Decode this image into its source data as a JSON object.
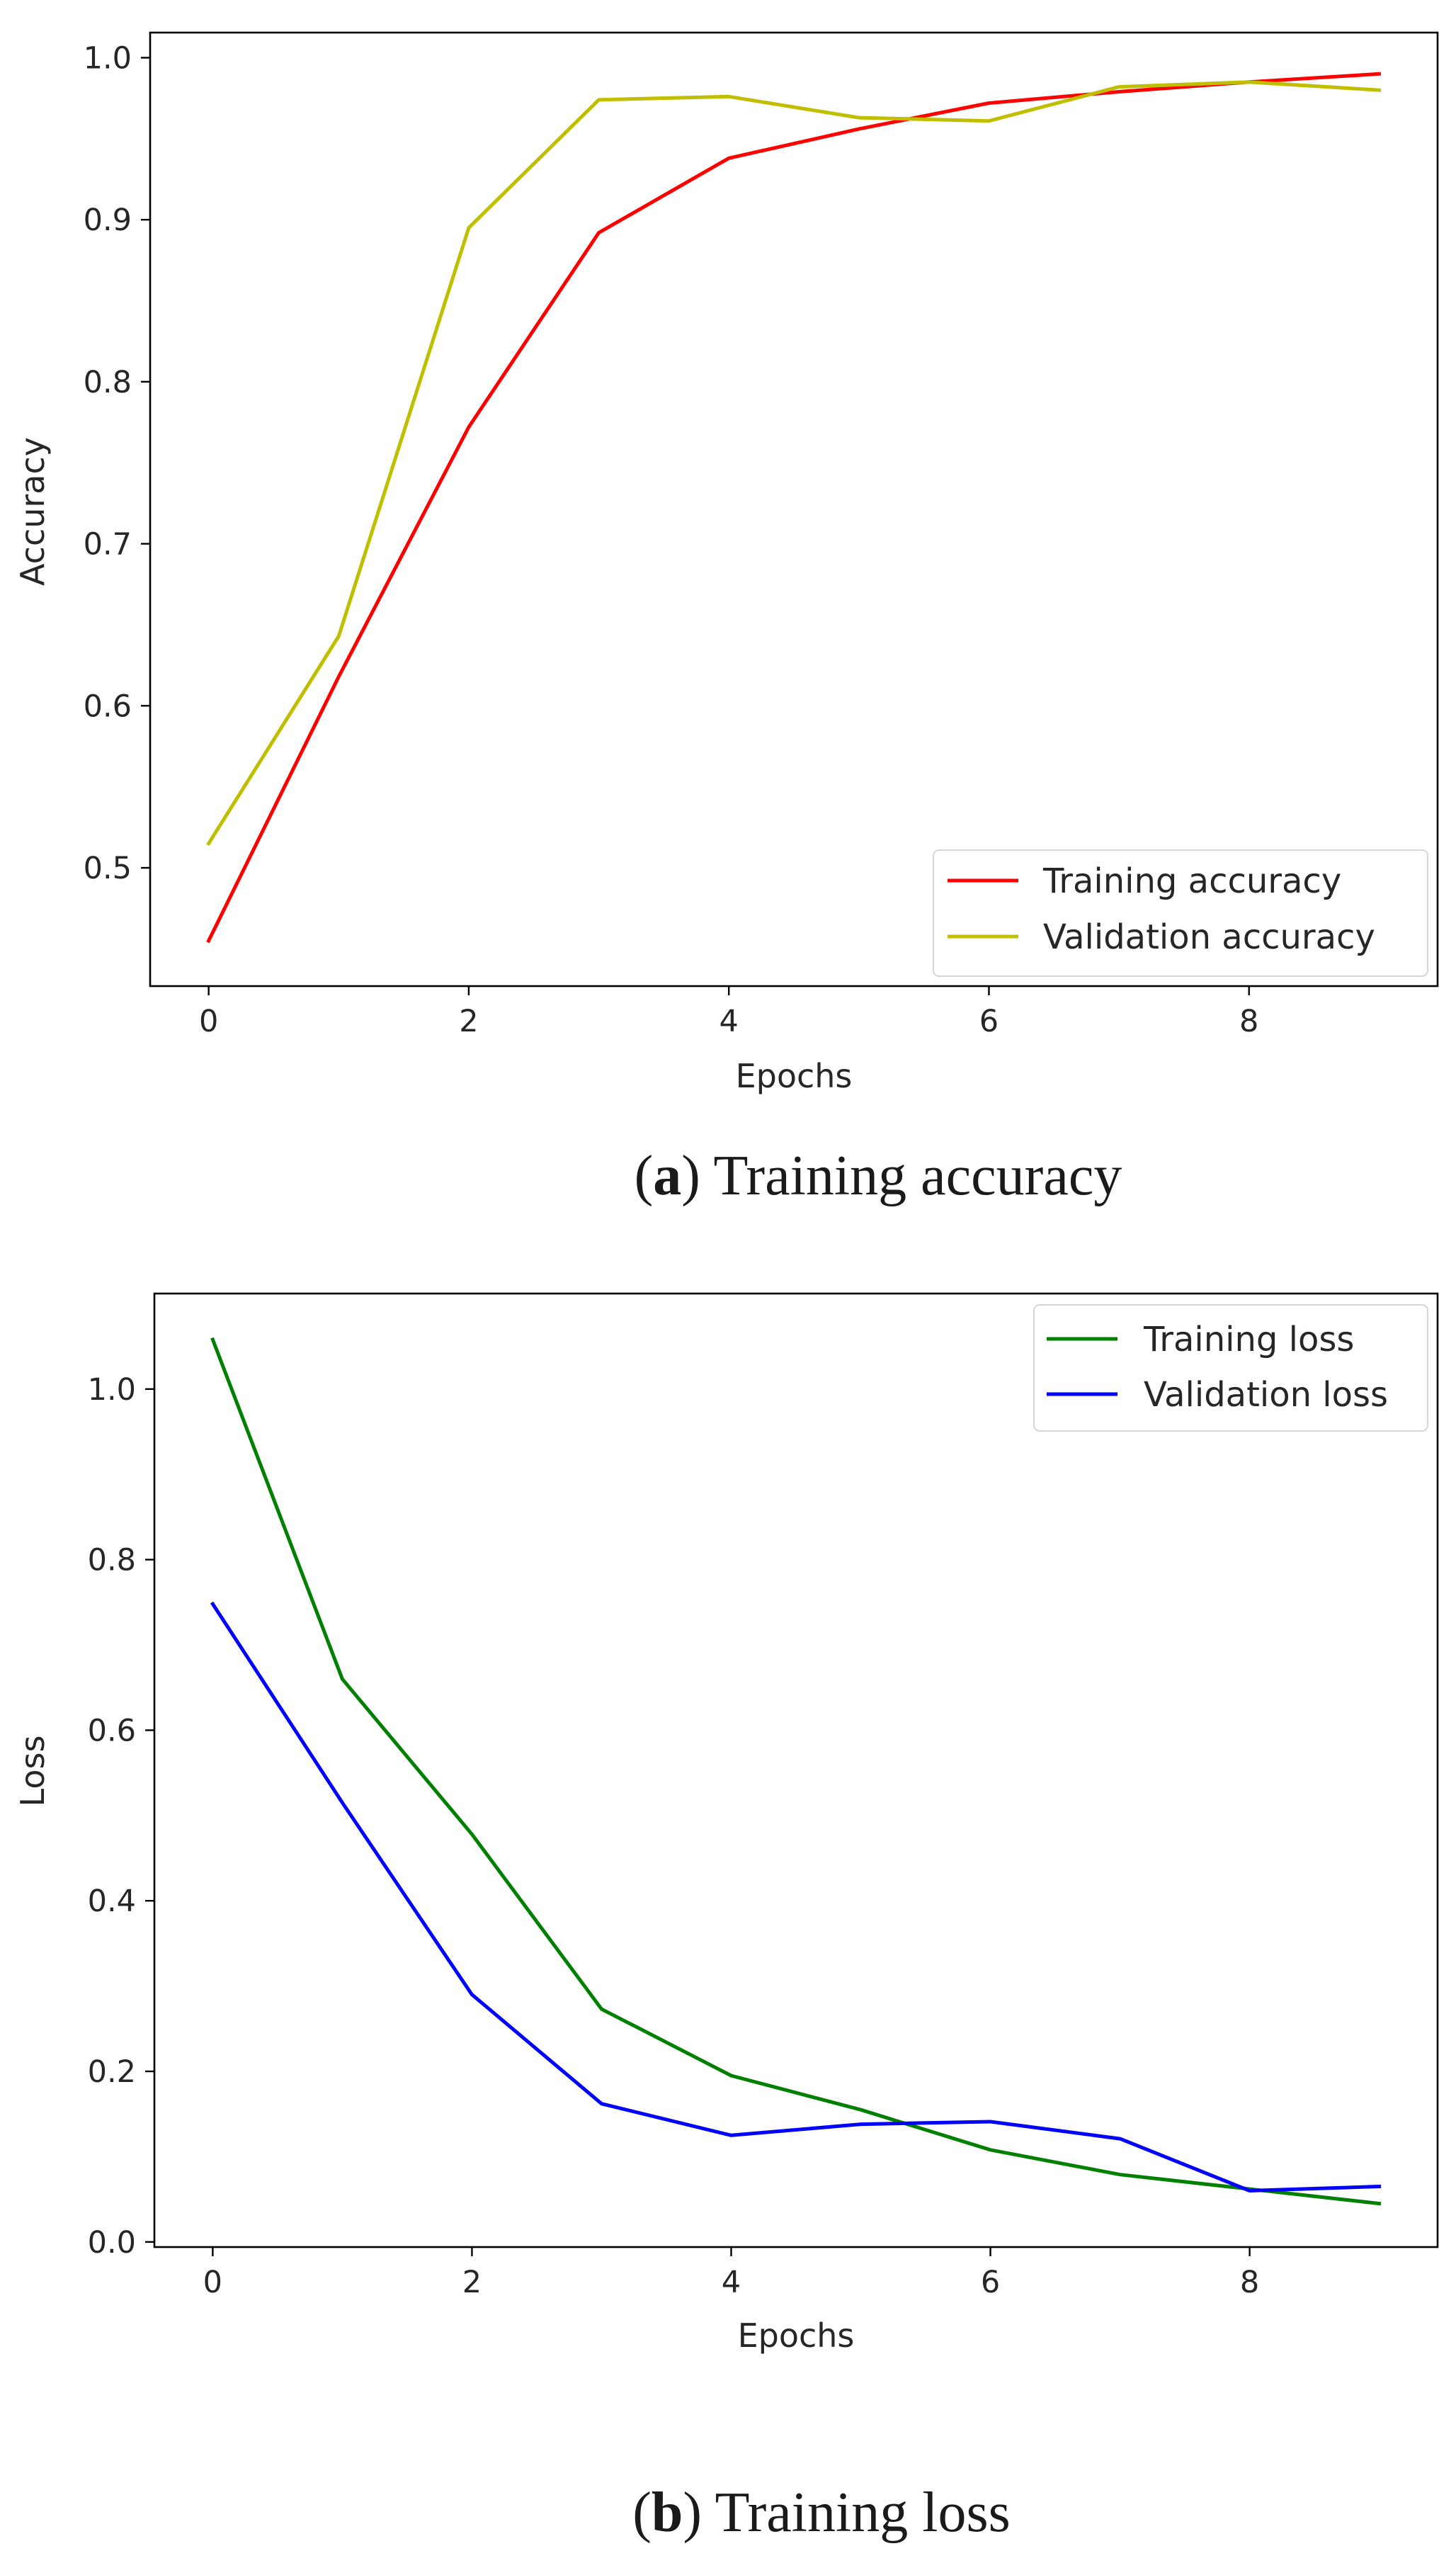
{
  "chart_data": [
    {
      "id": "accuracy",
      "type": "line",
      "title": "",
      "xlabel": "Epochs",
      "ylabel": "Accuracy",
      "xlim": [
        -0.45,
        9.45
      ],
      "ylim": [
        0.427,
        1.0155
      ],
      "xticks": [
        0,
        2,
        4,
        6,
        8
      ],
      "xtick_labels": [
        "0",
        "2",
        "4",
        "6",
        "8"
      ],
      "yticks": [
        0.5,
        0.6,
        0.7,
        0.8,
        0.9,
        1.0
      ],
      "ytick_labels": [
        "0.5",
        "0.6",
        "0.7",
        "0.8",
        "0.9",
        "1.0"
      ],
      "grid": false,
      "legend_position": "lower-right",
      "x": [
        0,
        1,
        2,
        3,
        4,
        5,
        6,
        7,
        8,
        9
      ],
      "series": [
        {
          "name": "Training accuracy",
          "color": "#ff0000",
          "values": [
            0.455,
            0.618,
            0.772,
            0.892,
            0.938,
            0.956,
            0.972,
            0.979,
            0.985,
            0.99
          ]
        },
        {
          "name": "Validation accuracy",
          "color": "#bfbf00",
          "values": [
            0.515,
            0.643,
            0.895,
            0.974,
            0.976,
            0.963,
            0.961,
            0.982,
            0.985,
            0.98
          ]
        }
      ],
      "caption": {
        "label": "a",
        "text": "Training accuracy"
      }
    },
    {
      "id": "loss",
      "type": "line",
      "title": "",
      "xlabel": "Epochs",
      "ylabel": "Loss",
      "xlim": [
        -0.45,
        9.45
      ],
      "ylim": [
        -0.006,
        1.112
      ],
      "xticks": [
        0,
        2,
        4,
        6,
        8
      ],
      "xtick_labels": [
        "0",
        "2",
        "4",
        "6",
        "8"
      ],
      "yticks": [
        0.0,
        0.2,
        0.4,
        0.6,
        0.8,
        1.0
      ],
      "ytick_labels": [
        "0.0",
        "0.2",
        "0.4",
        "0.6",
        "0.8",
        "1.0"
      ],
      "grid": false,
      "legend_position": "upper-right",
      "x": [
        0,
        1,
        2,
        3,
        4,
        5,
        6,
        7,
        8,
        9
      ],
      "series": [
        {
          "name": "Training loss",
          "color": "#008000",
          "values": [
            1.058,
            0.66,
            0.478,
            0.273,
            0.195,
            0.155,
            0.108,
            0.079,
            0.062,
            0.045
          ]
        },
        {
          "name": "Validation loss",
          "color": "#0000ff",
          "values": [
            0.748,
            0.515,
            0.29,
            0.162,
            0.125,
            0.138,
            0.141,
            0.121,
            0.06,
            0.065
          ]
        }
      ],
      "caption": {
        "label": "b",
        "text": "Training loss"
      }
    }
  ]
}
